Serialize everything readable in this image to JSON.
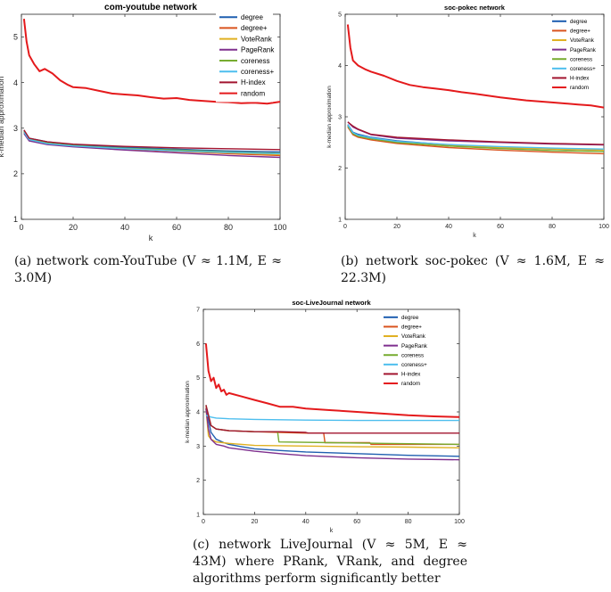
{
  "chart_data": [
    {
      "type": "line",
      "title": "com-youtube network",
      "xlabel": "k",
      "ylabel": "k-median approximation",
      "xlim": [
        0,
        100
      ],
      "ylim": [
        1,
        5.5
      ],
      "xticks": [
        0,
        20,
        40,
        60,
        80,
        100
      ],
      "yticks": [
        1,
        2,
        3,
        4,
        5
      ],
      "legend_position": "top-right",
      "series": [
        {
          "name": "degree",
          "color": "#1f5fb0",
          "x": [
            1,
            3,
            10,
            20,
            40,
            60,
            80,
            100
          ],
          "y": [
            2.95,
            2.78,
            2.7,
            2.64,
            2.58,
            2.54,
            2.5,
            2.48
          ]
        },
        {
          "name": "degree+",
          "color": "#d9531e",
          "x": [
            1,
            3,
            10,
            20,
            40,
            60,
            80,
            100
          ],
          "y": [
            2.9,
            2.74,
            2.66,
            2.6,
            2.54,
            2.49,
            2.44,
            2.4
          ]
        },
        {
          "name": "VoteRank",
          "color": "#e0b020",
          "x": [
            1,
            3,
            10,
            20,
            40,
            60,
            80,
            100
          ],
          "y": [
            2.92,
            2.75,
            2.66,
            2.61,
            2.55,
            2.5,
            2.46,
            2.42
          ]
        },
        {
          "name": "PageRank",
          "color": "#7e2f8e",
          "x": [
            1,
            3,
            10,
            20,
            40,
            60,
            80,
            100
          ],
          "y": [
            2.88,
            2.72,
            2.64,
            2.59,
            2.52,
            2.46,
            2.4,
            2.36
          ]
        },
        {
          "name": "coreness",
          "color": "#77ac30",
          "x": [
            1,
            3,
            10,
            20,
            40,
            60,
            80,
            100
          ],
          "y": [
            2.93,
            2.76,
            2.67,
            2.62,
            2.56,
            2.52,
            2.48,
            2.45
          ]
        },
        {
          "name": "coreness+",
          "color": "#4dbeee",
          "x": [
            1,
            3,
            10,
            20,
            40,
            60,
            80,
            100
          ],
          "y": [
            2.91,
            2.75,
            2.66,
            2.61,
            2.55,
            2.5,
            2.47,
            2.44
          ]
        },
        {
          "name": "H-index",
          "color": "#a2142f",
          "x": [
            1,
            3,
            10,
            20,
            40,
            60,
            80,
            100
          ],
          "y": [
            2.96,
            2.78,
            2.7,
            2.65,
            2.6,
            2.57,
            2.55,
            2.53
          ]
        },
        {
          "name": "random",
          "color": "#e41a1c",
          "x": [
            1,
            2,
            3,
            5,
            7,
            9,
            12,
            15,
            18,
            20,
            25,
            30,
            35,
            40,
            45,
            50,
            55,
            60,
            65,
            70,
            75,
            80,
            85,
            90,
            95,
            100
          ],
          "y": [
            5.4,
            4.9,
            4.6,
            4.4,
            4.25,
            4.3,
            4.2,
            4.05,
            3.95,
            3.9,
            3.88,
            3.82,
            3.76,
            3.74,
            3.72,
            3.68,
            3.65,
            3.66,
            3.62,
            3.6,
            3.58,
            3.57,
            3.55,
            3.56,
            3.54,
            3.58
          ]
        }
      ]
    },
    {
      "type": "line",
      "title": "soc-pokec network",
      "xlabel": "k",
      "ylabel": "k-median approximation",
      "xlim": [
        0,
        100
      ],
      "ylim": [
        1,
        5
      ],
      "xticks": [
        0,
        20,
        40,
        60,
        80,
        100
      ],
      "yticks": [
        1,
        2,
        3,
        4,
        5
      ],
      "legend_position": "top-right",
      "series": [
        {
          "name": "degree",
          "color": "#1f5fb0",
          "x": [
            1,
            3,
            5,
            10,
            20,
            40,
            60,
            80,
            100
          ],
          "y": [
            2.85,
            2.7,
            2.66,
            2.6,
            2.53,
            2.45,
            2.4,
            2.37,
            2.35
          ]
        },
        {
          "name": "degree+",
          "color": "#d9531e",
          "x": [
            1,
            3,
            5,
            10,
            20,
            40,
            60,
            80,
            100
          ],
          "y": [
            2.8,
            2.65,
            2.6,
            2.55,
            2.48,
            2.4,
            2.35,
            2.31,
            2.28
          ]
        },
        {
          "name": "VoteRank",
          "color": "#e0b020",
          "x": [
            1,
            3,
            5,
            10,
            20,
            40,
            60,
            80,
            100
          ],
          "y": [
            2.83,
            2.68,
            2.63,
            2.58,
            2.51,
            2.44,
            2.4,
            2.37,
            2.35
          ]
        },
        {
          "name": "PageRank",
          "color": "#7e2f8e",
          "x": [
            1,
            3,
            5,
            10,
            20,
            40,
            60,
            80,
            100
          ],
          "y": [
            2.9,
            2.8,
            2.75,
            2.65,
            2.58,
            2.53,
            2.5,
            2.47,
            2.45
          ]
        },
        {
          "name": "coreness",
          "color": "#77ac30",
          "x": [
            1,
            3,
            5,
            10,
            20,
            40,
            60,
            80,
            100
          ],
          "y": [
            2.82,
            2.67,
            2.62,
            2.57,
            2.5,
            2.43,
            2.38,
            2.34,
            2.32
          ]
        },
        {
          "name": "coreness+",
          "color": "#4dbeee",
          "x": [
            1,
            3,
            5,
            10,
            20,
            40,
            60,
            80,
            100
          ],
          "y": [
            2.84,
            2.69,
            2.64,
            2.59,
            2.52,
            2.46,
            2.42,
            2.39,
            2.37
          ]
        },
        {
          "name": "H-index",
          "color": "#a2142f",
          "x": [
            1,
            3,
            5,
            10,
            20,
            40,
            60,
            80,
            100
          ],
          "y": [
            2.9,
            2.82,
            2.76,
            2.66,
            2.6,
            2.55,
            2.51,
            2.48,
            2.46
          ]
        },
        {
          "name": "random",
          "color": "#e41a1c",
          "x": [
            1,
            2,
            3,
            5,
            8,
            10,
            15,
            20,
            25,
            30,
            35,
            40,
            45,
            50,
            60,
            70,
            80,
            90,
            95,
            100
          ],
          "y": [
            4.8,
            4.35,
            4.1,
            4.0,
            3.92,
            3.88,
            3.8,
            3.7,
            3.62,
            3.58,
            3.55,
            3.52,
            3.48,
            3.45,
            3.38,
            3.32,
            3.28,
            3.24,
            3.22,
            3.18
          ]
        }
      ]
    },
    {
      "type": "line",
      "title": "soc-LiveJournal network",
      "xlabel": "k",
      "ylabel": "k-median approximation",
      "xlim": [
        0,
        100
      ],
      "ylim": [
        1,
        7
      ],
      "xticks": [
        0,
        20,
        40,
        60,
        80,
        100
      ],
      "yticks": [
        1,
        2,
        3,
        4,
        5,
        6,
        7
      ],
      "legend_position": "top-right",
      "series": [
        {
          "name": "degree",
          "color": "#1f5fb0",
          "x": [
            1,
            3,
            5,
            8,
            10,
            15,
            20,
            30,
            40,
            60,
            80,
            100
          ],
          "y": [
            4.1,
            3.4,
            3.2,
            3.1,
            3.05,
            2.98,
            2.92,
            2.87,
            2.83,
            2.78,
            2.73,
            2.7
          ]
        },
        {
          "name": "degree+",
          "color": "#d9531e",
          "x": [
            1,
            3,
            5,
            10,
            20,
            30,
            40,
            47,
            47.5,
            65,
            65.5,
            100
          ],
          "y": [
            4.15,
            3.6,
            3.5,
            3.45,
            3.42,
            3.4,
            3.38,
            3.38,
            3.1,
            3.1,
            3.05,
            3.05
          ]
        },
        {
          "name": "VoteRank",
          "color": "#e0b020",
          "x": [
            1,
            2,
            3,
            5,
            10,
            20,
            40,
            60,
            80,
            100
          ],
          "y": [
            4.1,
            3.3,
            3.2,
            3.12,
            3.08,
            3.02,
            3.0,
            2.98,
            2.97,
            2.95
          ]
        },
        {
          "name": "PageRank",
          "color": "#7e2f8e",
          "x": [
            1,
            2,
            3,
            5,
            8,
            10,
            15,
            20,
            30,
            40,
            60,
            80,
            100
          ],
          "y": [
            4.1,
            3.5,
            3.2,
            3.05,
            3.0,
            2.95,
            2.9,
            2.85,
            2.78,
            2.72,
            2.66,
            2.62,
            2.6
          ]
        },
        {
          "name": "coreness",
          "color": "#77ac30",
          "x": [
            1,
            3,
            5,
            10,
            20,
            29,
            29.5,
            50,
            70,
            100
          ],
          "y": [
            4.2,
            3.6,
            3.5,
            3.45,
            3.42,
            3.42,
            3.12,
            3.1,
            3.08,
            3.05
          ]
        },
        {
          "name": "coreness+",
          "color": "#4dbeee",
          "x": [
            1,
            3,
            5,
            10,
            20,
            40,
            60,
            80,
            100
          ],
          "y": [
            3.9,
            3.85,
            3.82,
            3.8,
            3.78,
            3.76,
            3.75,
            3.75,
            3.75
          ]
        },
        {
          "name": "H-index",
          "color": "#a2142f",
          "x": [
            1,
            3,
            5,
            10,
            20,
            30,
            40,
            41,
            60,
            80,
            100
          ],
          "y": [
            4.2,
            3.6,
            3.5,
            3.45,
            3.42,
            3.42,
            3.4,
            3.38,
            3.38,
            3.38,
            3.38
          ]
        },
        {
          "name": "random",
          "color": "#e41a1c",
          "x": [
            1,
            2,
            3,
            4,
            5,
            6,
            7,
            8,
            9,
            10,
            15,
            20,
            25,
            30,
            35,
            40,
            50,
            60,
            70,
            80,
            90,
            100
          ],
          "y": [
            6.0,
            5.2,
            4.9,
            5.0,
            4.7,
            4.8,
            4.6,
            4.65,
            4.5,
            4.55,
            4.45,
            4.35,
            4.25,
            4.15,
            4.15,
            4.1,
            4.05,
            4.0,
            3.95,
            3.9,
            3.87,
            3.85
          ]
        }
      ]
    }
  ],
  "captions": {
    "a": {
      "label": "(a)",
      "text": "network com-YouTube (V ≈ 1.1M, E ≈ 3.0M)"
    },
    "b": {
      "label": "(b)",
      "text": "network soc-pokec (V ≈ 1.6M, E ≈ 22.3M)"
    },
    "c": {
      "label": "(c)",
      "text": "network LiveJournal (V ≈ 5M, E ≈ 43M) where PRank, VRank, and degree algorithms perform significantly better"
    }
  }
}
